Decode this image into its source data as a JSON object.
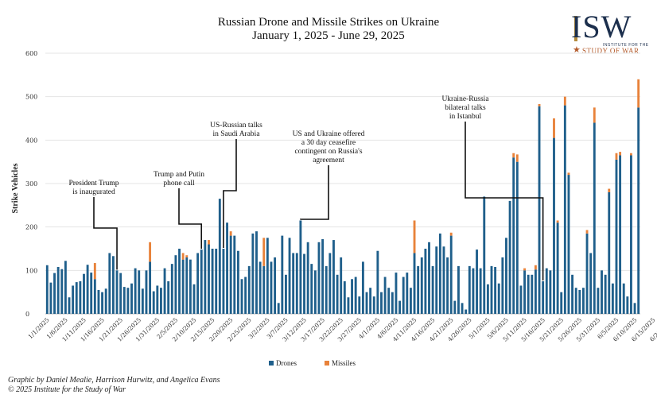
{
  "chart_data": {
    "type": "bar",
    "title": "Russian Drone and Missile Strikes on Ukraine",
    "subtitle": "January 1, 2025 - June 29, 2025",
    "ylabel": "Strike Vehicles",
    "xlabel": "",
    "ylim": [
      0,
      600
    ],
    "yticks": [
      0,
      100,
      200,
      300,
      400,
      500,
      600
    ],
    "start_date": "2025-01-01",
    "tick_labels": [
      "1/1/2025",
      "1/6/2025",
      "1/11/2025",
      "1/16/2025",
      "1/21/2025",
      "1/26/2025",
      "1/31/2025",
      "2/5/2025",
      "2/10/2025",
      "2/15/2025",
      "2/20/2025",
      "2/25/2025",
      "3/2/2025",
      "3/7/2025",
      "3/12/2025",
      "3/17/2025",
      "3/22/2025",
      "3/27/2025",
      "4/1/2025",
      "4/6/2025",
      "4/11/2025",
      "4/16/2025",
      "4/21/2025",
      "4/26/2025",
      "5/1/2025",
      "5/6/2025",
      "5/11/2025",
      "5/16/2025",
      "5/21/2025",
      "5/26/2025",
      "5/31/2025",
      "6/5/2025",
      "6/10/2025",
      "6/15/2025",
      "6/20/2025",
      "6/25/2025"
    ],
    "legend_position": "bottom-center",
    "series": [
      {
        "name": "Drones",
        "color": "#1f5f8b",
        "values": [
          112,
          72,
          94,
          108,
          103,
          122,
          38,
          65,
          73,
          75,
          92,
          113,
          95,
          80,
          55,
          50,
          58,
          140,
          133,
          100,
          94,
          62,
          60,
          70,
          105,
          100,
          58,
          100,
          120,
          52,
          65,
          60,
          105,
          75,
          115,
          135,
          150,
          125,
          130,
          125,
          68,
          140,
          148,
          170,
          160,
          150,
          150,
          265,
          150,
          210,
          180,
          180,
          145,
          80,
          85,
          110,
          185,
          190,
          120,
          110,
          175,
          120,
          130,
          25,
          180,
          90,
          175,
          140,
          140,
          215,
          138,
          165,
          115,
          100,
          165,
          172,
          110,
          140,
          170,
          90,
          130,
          75,
          38,
          80,
          85,
          40,
          120,
          50,
          60,
          40,
          145,
          50,
          85,
          60,
          50,
          95,
          30,
          85,
          95,
          60,
          140,
          110,
          130,
          150,
          165,
          110,
          155,
          185,
          155,
          130,
          180,
          30,
          110,
          25,
          10,
          110,
          105,
          148,
          105,
          270,
          68,
          110,
          108,
          70,
          130,
          175,
          260,
          360,
          350,
          65,
          100,
          90,
          90,
          102,
          478,
          75,
          105,
          100,
          405,
          210,
          50,
          480,
          320,
          90,
          60,
          55,
          60,
          185,
          140,
          440,
          60,
          100,
          90,
          280,
          70,
          355,
          365,
          70,
          40,
          365,
          25,
          475
        ],
        "missiles": [
          0,
          0,
          0,
          0,
          0,
          0,
          0,
          0,
          0,
          0,
          0,
          0,
          0,
          37,
          0,
          0,
          0,
          0,
          0,
          0,
          0,
          0,
          0,
          0,
          0,
          0,
          0,
          0,
          45,
          0,
          0,
          0,
          0,
          0,
          0,
          0,
          0,
          15,
          5,
          0,
          0,
          0,
          0,
          0,
          10,
          0,
          0,
          0,
          0,
          0,
          10,
          0,
          0,
          0,
          0,
          0,
          0,
          0,
          0,
          65,
          0,
          0,
          0,
          0,
          0,
          0,
          0,
          0,
          0,
          0,
          0,
          0,
          0,
          0,
          0,
          0,
          0,
          0,
          0,
          0,
          0,
          0,
          0,
          0,
          0,
          0,
          0,
          0,
          0,
          0,
          0,
          0,
          0,
          0,
          0,
          0,
          0,
          0,
          0,
          0,
          75,
          0,
          0,
          0,
          0,
          0,
          0,
          0,
          0,
          0,
          7,
          0,
          0,
          0,
          0,
          0,
          0,
          0,
          0,
          0,
          0,
          0,
          0,
          0,
          0,
          0,
          0,
          10,
          17,
          0,
          5,
          0,
          0,
          10,
          5,
          0,
          0,
          0,
          45,
          5,
          0,
          20,
          5,
          0,
          0,
          0,
          0,
          8,
          0,
          35,
          0,
          0,
          0,
          8,
          0,
          15,
          8,
          0,
          0,
          5,
          0,
          65
        ]
      },
      {
        "name": "Missiles",
        "color": "#e8823a"
      }
    ],
    "annotations": [
      {
        "text": "President Trump\nis inaugurated",
        "date": "1/20/2025"
      },
      {
        "text": "Trump and Putin\nphone call",
        "date": "2/12/2025"
      },
      {
        "text": "US-Russian talks\nin Saudi Arabia",
        "date": "2/18/2025"
      },
      {
        "text": "US and Ukraine offered\na 30 day ceasefire\ncontingent on Russia's\nagreement",
        "date": "3/11/2025"
      },
      {
        "text": "Ukraine-Russia\nbilateral talks\nin Istanbul",
        "date": "5/16/2025"
      }
    ]
  },
  "logo": {
    "main": "ISW",
    "line1": "INSTITUTE FOR THE",
    "line2": "STUDY OF WAR"
  },
  "footer": {
    "line1": "Graphic by Daniel Mealie, Harrison Hurwitz, and Angelica Evans",
    "line2": "© 2025 Institute for the Study of War"
  }
}
